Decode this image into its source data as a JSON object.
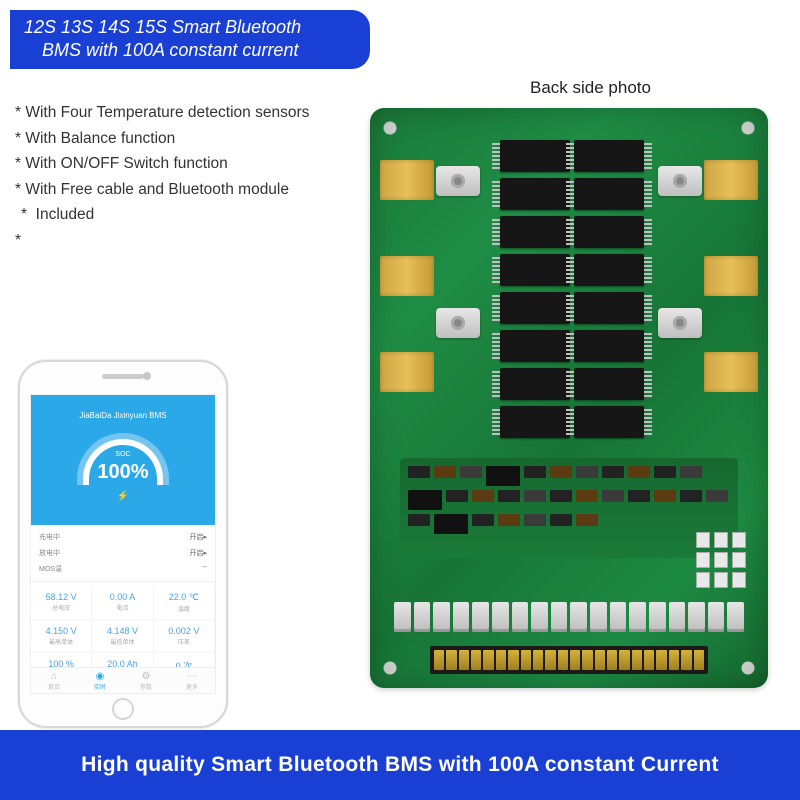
{
  "banner": {
    "line1": "12S 13S 14S 15S Smart Bluetooth",
    "line2": "BMS with 100A constant current",
    "bg_color": "#1a3fd4",
    "text_color": "#ffffff"
  },
  "back_label": "Back side photo",
  "features": [
    "With Four Temperature detection sensors",
    "With Balance function",
    "With ON/OFF Switch function",
    "With Free cable and Bluetooth module",
    "Included"
  ],
  "phone": {
    "header": "JiaBaiDa Jixinyuan BMS",
    "gauge_label": "SOC",
    "gauge_value": "100%",
    "rows": [
      {
        "l": "充电中",
        "r": "开启▸"
      },
      {
        "l": "放电中",
        "r": "开启▸"
      },
      {
        "l": "MOS温",
        "r": "--"
      }
    ],
    "cells": [
      {
        "v": "58.12 V",
        "l": "总电压"
      },
      {
        "v": "0.00 A",
        "l": "电流"
      },
      {
        "v": "22.0 ℃",
        "l": "温度"
      },
      {
        "v": "4.150 V",
        "l": "最高单体"
      },
      {
        "v": "4.148 V",
        "l": "最低单体"
      },
      {
        "v": "0.002 V",
        "l": "压差"
      },
      {
        "v": "100 %",
        "l": "容量"
      },
      {
        "v": "20.0 Ah",
        "l": "剩余容量"
      },
      {
        "v": "0 次",
        "l": "循环"
      }
    ],
    "tabs": [
      {
        "icn": "⌂",
        "lab": "首页",
        "active": false
      },
      {
        "icn": "◉",
        "lab": "实时",
        "active": true
      },
      {
        "icn": "⚙",
        "lab": "参数",
        "active": false
      },
      {
        "icn": "⋯",
        "lab": "更多",
        "active": false
      }
    ],
    "accent_color": "#2aa8e8"
  },
  "pcb": {
    "base_color": "#1a7a3a",
    "copper_color": "#cda442",
    "mosfet_rows": 8,
    "mosfet_cols": 2,
    "connector_count": 18,
    "pin_count": 22,
    "extra_conn": 9,
    "smd_count": 30
  },
  "bottom_banner": {
    "text": "High quality Smart Bluetooth BMS with 100A constant  Current",
    "bg_color": "#1a3fd4",
    "text_color": "#ffffff"
  }
}
